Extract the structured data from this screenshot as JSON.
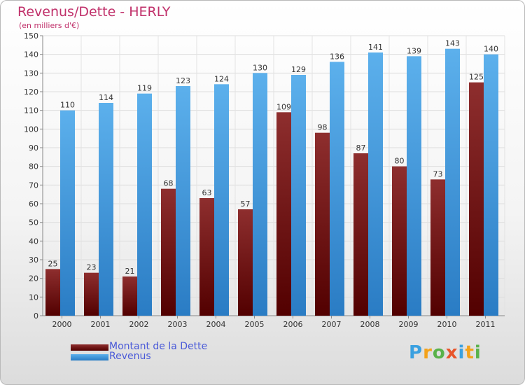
{
  "chart_title": "Revenus/Dette - HERLY",
  "chart_subtitle": "(en milliers d'€)",
  "brand": [
    "P",
    "r",
    "o",
    "x",
    "i",
    "t",
    "i"
  ],
  "chart_data": {
    "type": "bar",
    "title": "Revenus/Dette - HERLY",
    "subtitle": "(en milliers d'€)",
    "xlabel": "",
    "ylabel": "",
    "ylim": [
      0,
      150
    ],
    "yticks": [
      0,
      10,
      20,
      30,
      40,
      50,
      60,
      70,
      80,
      90,
      100,
      110,
      120,
      130,
      140,
      150
    ],
    "grid": true,
    "legend_position": "bottom-left",
    "categories": [
      "2000",
      "2001",
      "2002",
      "2003",
      "2004",
      "2005",
      "2006",
      "2007",
      "2008",
      "2009",
      "2010",
      "2011"
    ],
    "series": [
      {
        "name": "Montant de la Dette",
        "color": "#7a1a1a",
        "values": [
          25,
          23,
          21,
          68,
          63,
          57,
          109,
          98,
          87,
          80,
          73,
          125
        ]
      },
      {
        "name": "Revenus",
        "color": "#3a96dc",
        "values": [
          110,
          114,
          119,
          123,
          124,
          130,
          129,
          136,
          141,
          139,
          143,
          140
        ]
      }
    ]
  }
}
